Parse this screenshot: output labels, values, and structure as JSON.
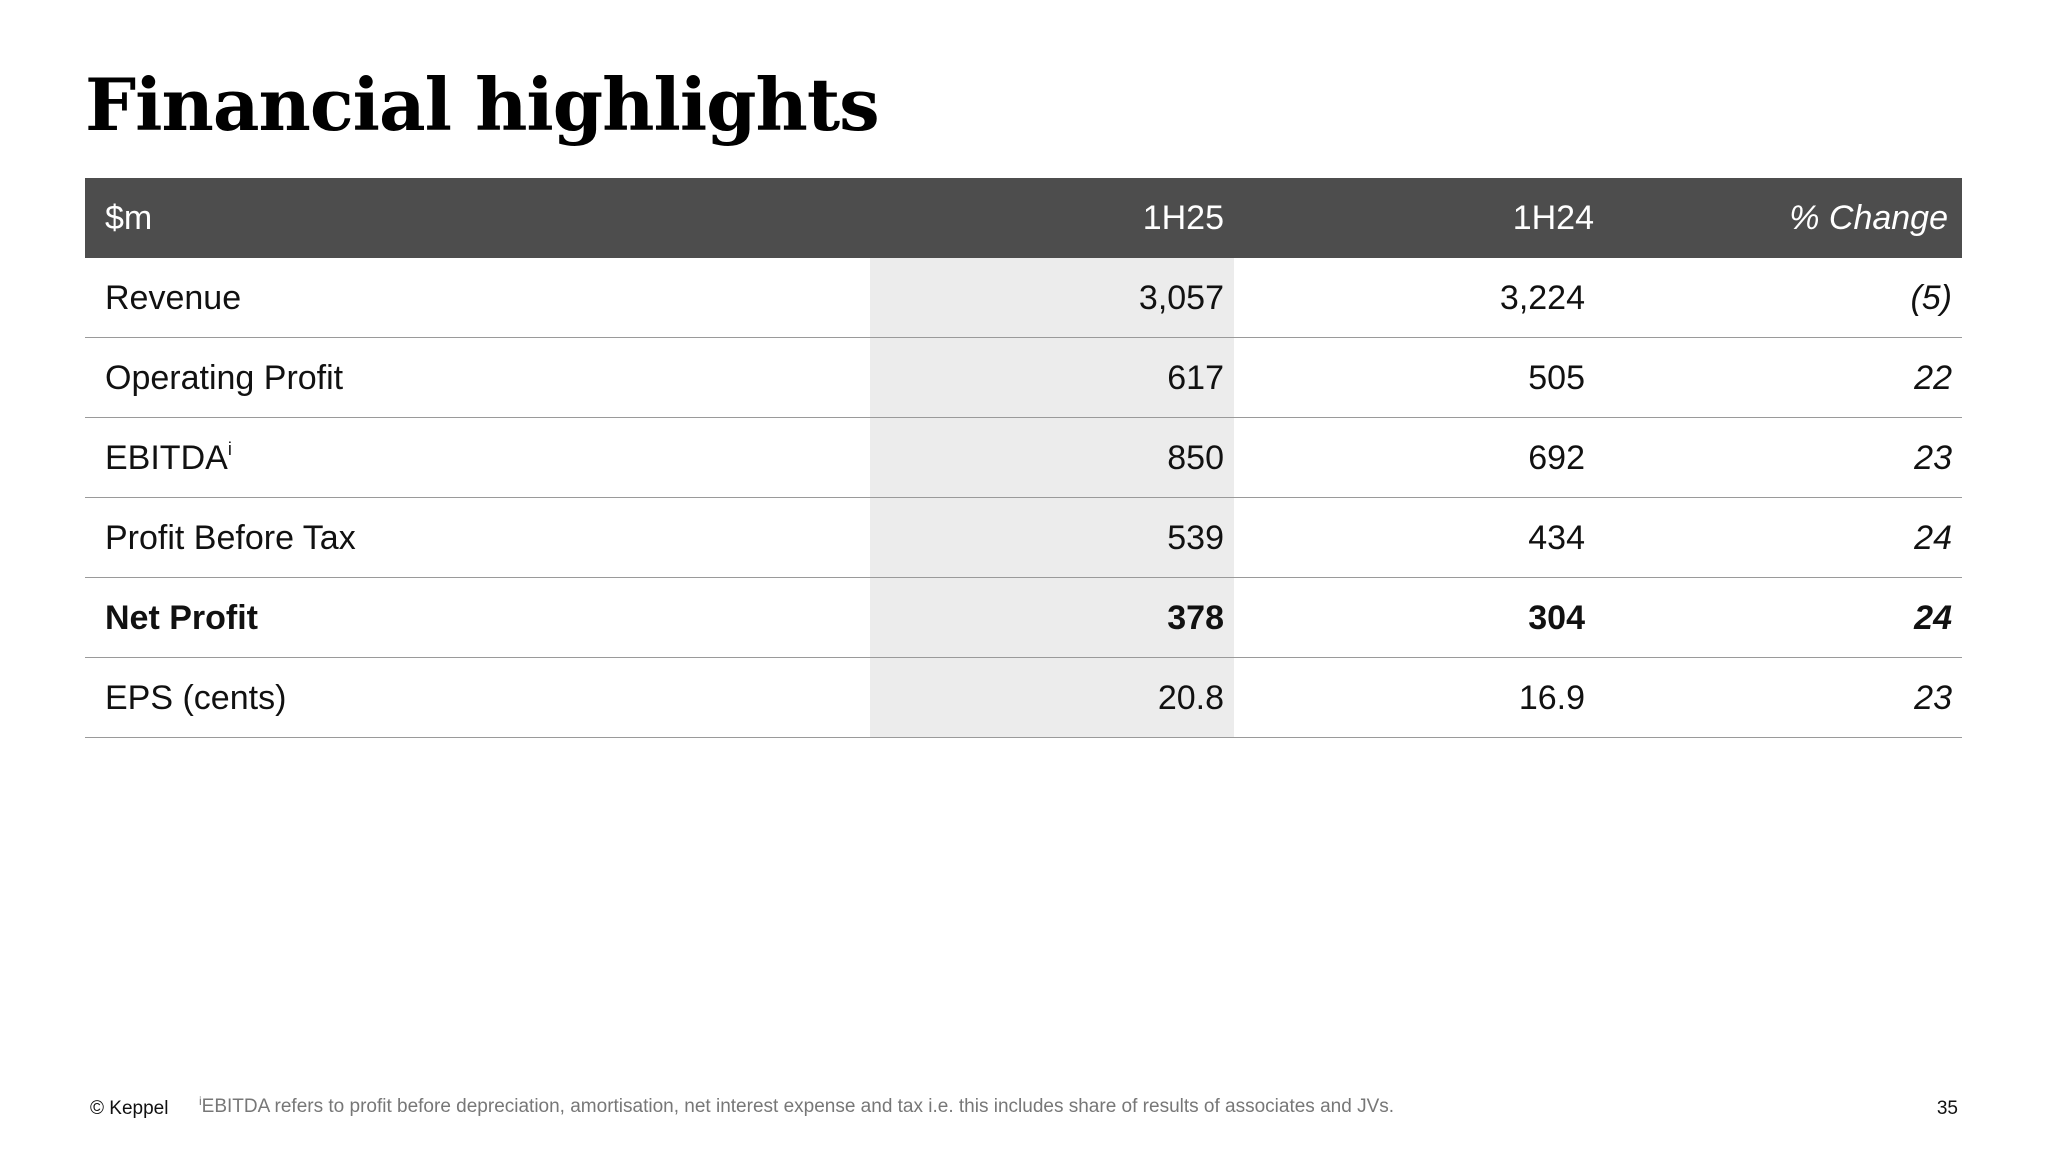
{
  "header": {
    "title": "Financial highlights"
  },
  "table": {
    "columns": [
      "$m",
      "1H25",
      "1H24",
      "% Change"
    ],
    "rows": [
      {
        "label": "Revenue",
        "cells": [
          "3,057",
          "3,224",
          "(5)"
        ]
      },
      {
        "label": "Operating Profit",
        "cells": [
          "617",
          "505",
          "22"
        ]
      },
      {
        "label": "EBITDA",
        "sup": "i",
        "cells": [
          "850",
          "692",
          "23"
        ]
      },
      {
        "label": "Profit Before Tax",
        "cells": [
          "539",
          "434",
          "24"
        ]
      },
      {
        "label": "Net Profit",
        "bold": true,
        "cells": [
          "378",
          "304",
          "24"
        ]
      },
      {
        "label": "EPS (cents)",
        "cells": [
          "20.8",
          "16.9",
          "23"
        ]
      }
    ]
  },
  "footnote": {
    "marker": "i",
    "text": "EBITDA refers to profit before depreciation, amortisation, net interest expense and tax i.e. this includes share of results of associates and JVs."
  },
  "footer": {
    "copyright": "© Keppel",
    "page": "35"
  }
}
